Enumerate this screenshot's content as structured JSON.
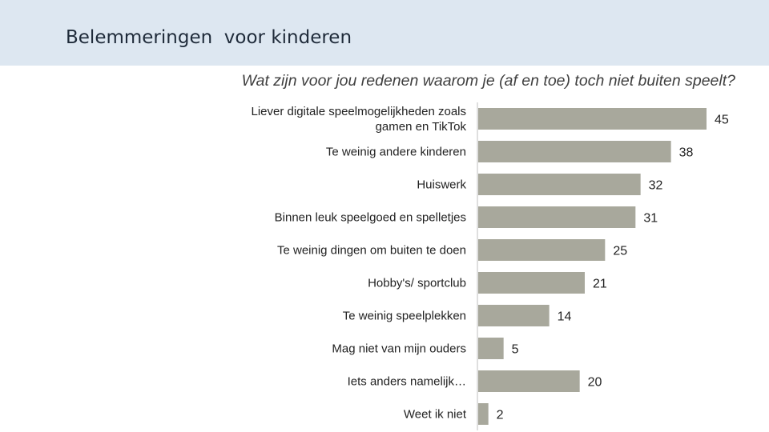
{
  "slide": {
    "title": "Belemmeringen  voor kinderen"
  },
  "chart_data": {
    "type": "bar",
    "orientation": "horizontal",
    "title": "Wat zijn voor jou redenen waarom je (af en toe) toch niet buiten speelt?",
    "categories": [
      "Liever digitale speelmogelijkheden zoals gamen en TikTok",
      "Te weinig andere kinderen",
      "Huiswerk",
      "Binnen leuk speelgoed en spelletjes",
      "Te weinig dingen om buiten te doen",
      "Hobby's/ sportclub",
      "Te weinig speelplekken",
      "Mag niet van mijn ouders",
      "Iets anders namelijk…",
      "Weet ik niet"
    ],
    "category_lines": [
      [
        "Liever digitale speelmogelijkheden zoals",
        "gamen en TikTok"
      ],
      [
        "Te weinig andere kinderen"
      ],
      [
        "Huiswerk"
      ],
      [
        "Binnen leuk speelgoed en spelletjes"
      ],
      [
        "Te weinig dingen om buiten te doen"
      ],
      [
        "Hobby's/ sportclub"
      ],
      [
        "Te weinig speelplekken"
      ],
      [
        "Mag niet van mijn ouders"
      ],
      [
        "Iets anders namelijk…"
      ],
      [
        "Weet ik niet"
      ]
    ],
    "values": [
      45,
      38,
      32,
      31,
      25,
      21,
      14,
      5,
      20,
      2
    ],
    "data_labels": [
      "45",
      "38",
      "32",
      "31",
      "25",
      "21",
      "14",
      "5",
      "20",
      "2"
    ],
    "xlim": [
      0,
      45
    ],
    "grid": false,
    "legend": "none",
    "bar_color": "#a8a89c",
    "axis_color": "#bfbfbf",
    "label_color": "#222222"
  }
}
